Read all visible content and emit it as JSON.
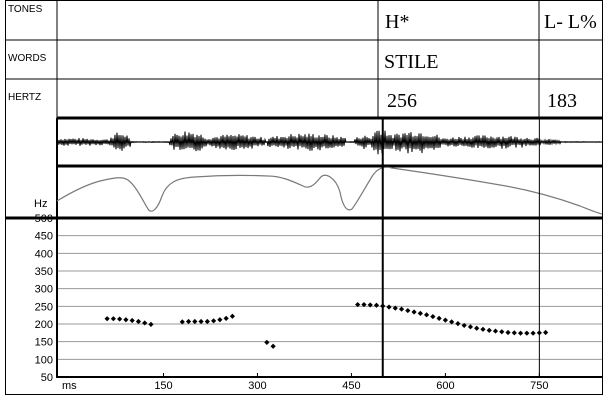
{
  "tiers": {
    "tones_label": "TONES",
    "words_label": "WORDS",
    "hertz_label": "HERTZ",
    "tone_1": "H*",
    "tone_2": "L- L%",
    "word_1": "STILE",
    "hertz_1": "256",
    "hertz_2": "183"
  },
  "colors": {
    "axis": "#000000",
    "grid": "#9a9a9a",
    "pitch_marker": "#000000",
    "contour": "#7a7a7a",
    "waveform": "#000000"
  },
  "chart_data": {
    "type": "scatter",
    "title": "",
    "xlabel": "ms",
    "ylabel": "Hz",
    "xlim": [
      -20,
      850
    ],
    "ylim": [
      50,
      500
    ],
    "x_ticks": [
      150,
      300,
      450,
      600,
      750
    ],
    "y_ticks": [
      50,
      100,
      150,
      200,
      250,
      300,
      350,
      400,
      450,
      500
    ],
    "grid": true,
    "cursor_ms": 500,
    "boundary_ms": 750,
    "series": [
      {
        "values": [
          [
            60,
            215
          ],
          [
            70,
            215
          ],
          [
            80,
            214
          ],
          [
            90,
            212
          ],
          [
            100,
            210
          ],
          [
            110,
            207
          ],
          [
            120,
            203
          ],
          [
            130,
            199
          ],
          [
            180,
            206
          ],
          [
            190,
            207
          ],
          [
            200,
            207
          ],
          [
            210,
            207
          ],
          [
            220,
            207
          ],
          [
            230,
            209
          ],
          [
            240,
            212
          ],
          [
            250,
            216
          ],
          [
            260,
            222
          ],
          [
            315,
            148
          ],
          [
            325,
            137
          ],
          [
            460,
            255
          ],
          [
            470,
            255
          ],
          [
            480,
            254
          ],
          [
            490,
            253
          ],
          [
            500,
            251
          ],
          [
            510,
            248
          ],
          [
            520,
            245
          ],
          [
            530,
            242
          ],
          [
            540,
            238
          ],
          [
            550,
            234
          ],
          [
            560,
            230
          ],
          [
            570,
            226
          ],
          [
            580,
            221
          ],
          [
            590,
            216
          ],
          [
            600,
            211
          ],
          [
            610,
            206
          ],
          [
            620,
            201
          ],
          [
            630,
            196
          ],
          [
            640,
            192
          ],
          [
            650,
            188
          ],
          [
            660,
            185
          ],
          [
            670,
            182
          ],
          [
            680,
            180
          ],
          [
            690,
            178
          ],
          [
            700,
            176
          ],
          [
            710,
            175
          ],
          [
            720,
            174
          ],
          [
            730,
            174
          ],
          [
            740,
            174
          ],
          [
            750,
            175
          ],
          [
            760,
            176
          ]
        ]
      }
    ]
  }
}
